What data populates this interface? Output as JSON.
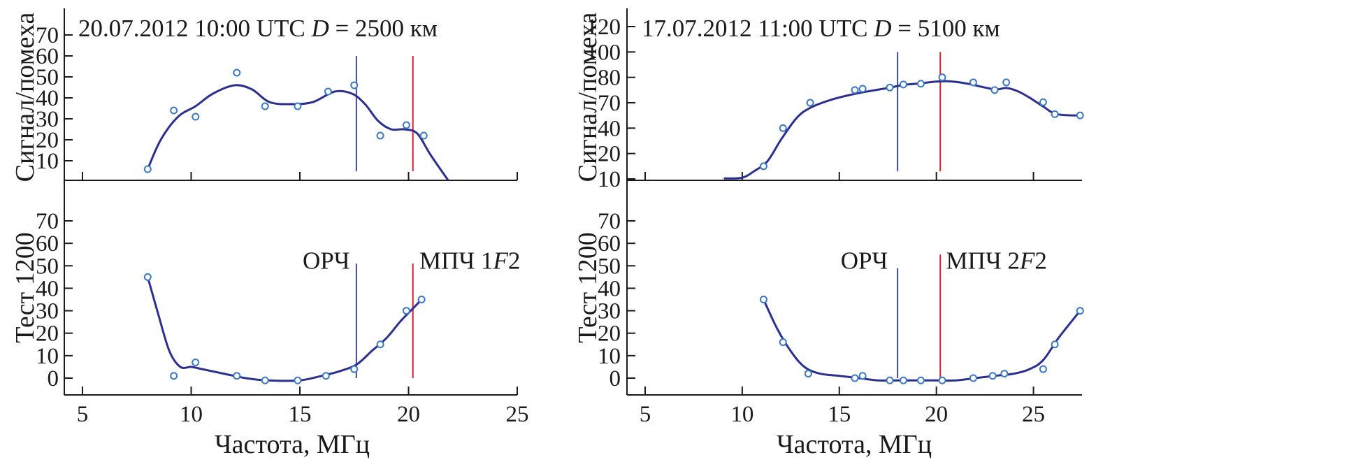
{
  "colors": {
    "curve": "#2b2f8f",
    "points": "#3a78c8",
    "opf_line": "#3a4aa8",
    "muf_line": "#d8202a",
    "axis": "#1a1a1a"
  },
  "xlabel": "Частота, МГц",
  "chart_data": [
    {
      "id": "top-left",
      "type": "line",
      "ylabel": "Сигнал/помеха",
      "annotation": {
        "date": "20.07.2012 10:00 UTC ",
        "dvar": "D",
        "drest": " = 2500 км"
      },
      "xlim": [
        5,
        25
      ],
      "xticks": [
        5,
        10,
        15,
        20,
        25
      ],
      "show_xtick_labels": false,
      "yticks": [
        10,
        20,
        30,
        40,
        50,
        60,
        70
      ],
      "ytick_labels": [
        "10",
        "20",
        "30",
        "40",
        "50",
        "60",
        "70"
      ],
      "ylim": [
        0,
        75
      ],
      "series": [
        {
          "kind": "curve",
          "x": [
            8.0,
            8.6,
            9.4,
            10.2,
            11.0,
            12.0,
            12.8,
            13.6,
            14.6,
            15.6,
            16.6,
            17.4,
            18.0,
            18.6,
            19.2,
            19.8,
            20.4,
            21.0,
            21.8
          ],
          "y": [
            6,
            20,
            31,
            36,
            42,
            46,
            44,
            38,
            37,
            38,
            43,
            42,
            37,
            29,
            25,
            25,
            23,
            13,
            1
          ]
        },
        {
          "kind": "points",
          "x": [
            8.0,
            9.2,
            10.2,
            12.1,
            13.4,
            14.9,
            16.3,
            17.5,
            18.7,
            19.9,
            20.7
          ],
          "y": [
            6,
            34,
            31,
            52,
            36,
            36,
            43,
            46,
            22,
            27,
            22
          ]
        }
      ],
      "vlines": [
        {
          "x": 17.6,
          "role": "opf",
          "y": [
            5,
            60
          ]
        },
        {
          "x": 20.2,
          "role": "muf",
          "y": [
            5,
            60
          ]
        }
      ],
      "labels": []
    },
    {
      "id": "bottom-left",
      "type": "line",
      "ylabel": "Тест 1200",
      "xlim": [
        5,
        25
      ],
      "xticks": [
        5,
        10,
        15,
        20,
        25
      ],
      "show_xtick_labels": true,
      "yticks": [
        0,
        10,
        20,
        30,
        40,
        50,
        60,
        70
      ],
      "ytick_labels": [
        "0",
        "10",
        "20",
        "30",
        "40",
        "50",
        "60",
        "70"
      ],
      "ylim": [
        -2,
        72
      ],
      "series": [
        {
          "kind": "curve",
          "x": [
            8.0,
            8.5,
            9.0,
            9.5,
            10.0,
            10.5,
            11.5,
            12.5,
            13.5,
            15.0,
            16.0,
            16.8,
            17.6,
            18.3,
            19.0,
            19.6,
            20.1,
            20.6
          ],
          "y": [
            45,
            28,
            12,
            5,
            5,
            4,
            2,
            0,
            -1,
            -1,
            1,
            3,
            6,
            12,
            18,
            25,
            30,
            35
          ]
        },
        {
          "kind": "points",
          "x": [
            8.0,
            9.2,
            10.2,
            12.1,
            13.4,
            14.9,
            16.2,
            17.5,
            18.7,
            19.9,
            20.6
          ],
          "y": [
            45,
            1,
            7,
            1,
            -1,
            -1,
            1,
            4,
            15,
            30,
            35
          ]
        }
      ],
      "vlines": [
        {
          "x": 17.6,
          "role": "opf",
          "y": [
            0,
            51
          ]
        },
        {
          "x": 20.2,
          "role": "muf",
          "y": [
            0,
            51
          ]
        }
      ],
      "labels": [
        {
          "text": "ОРЧ",
          "x": 17.3,
          "y": 48,
          "anchor": "end"
        },
        {
          "text": "МПЧ 1",
          "italic": "F",
          "rest": "2",
          "x": 20.5,
          "y": 48,
          "anchor": "start"
        }
      ]
    },
    {
      "id": "top-right",
      "type": "line",
      "ylabel": "Сигнал/помеха",
      "annotation": {
        "date": "17.07.2012 11:00 UTC ",
        "dvar": "D",
        "drest": " = 5100 км"
      },
      "xlim": [
        5,
        27.5
      ],
      "xticks": [
        5,
        10,
        15,
        20,
        25
      ],
      "show_xtick_labels": false,
      "yticks": [
        10,
        20,
        40,
        70,
        80,
        100,
        120
      ],
      "ytick_labels": [
        "10",
        "20",
        "40",
        "70",
        "80",
        "100",
        "120"
      ],
      "ylim": [
        0,
        7
      ],
      "series": [
        {
          "kind": "curve",
          "x": [
            9.1,
            10.0,
            10.6,
            11.3,
            12.0,
            12.8,
            13.5,
            14.5,
            15.5,
            16.5,
            17.5,
            18.3,
            19.0,
            19.8,
            20.5,
            21.2,
            21.8,
            22.5,
            23.1,
            23.6,
            24.2,
            24.8,
            25.5,
            26.2,
            27.4
          ],
          "y": [
            0.02,
            0.05,
            0.3,
            0.7,
            1.55,
            2.4,
            2.8,
            3.1,
            3.3,
            3.45,
            3.58,
            3.7,
            3.75,
            3.82,
            3.85,
            3.8,
            3.72,
            3.6,
            3.52,
            3.58,
            3.45,
            3.2,
            2.85,
            2.55,
            2.5
          ]
        },
        {
          "kind": "points",
          "x": [
            11.1,
            12.1,
            13.5,
            15.8,
            16.2,
            17.6,
            18.3,
            19.2,
            20.3,
            21.9,
            23.0,
            23.6,
            25.5,
            26.1,
            27.4
          ],
          "y": [
            0.5,
            2.0,
            3.0,
            3.5,
            3.55,
            3.6,
            3.72,
            3.75,
            4.0,
            3.8,
            3.5,
            3.8,
            3.02,
            2.55,
            2.5
          ]
        }
      ],
      "vlines": [
        {
          "x": 18.0,
          "role": "opf",
          "y": [
            0.3,
            5.0
          ]
        },
        {
          "x": 20.2,
          "role": "muf",
          "y": [
            0.3,
            5.0
          ]
        }
      ],
      "labels": []
    },
    {
      "id": "bottom-right",
      "type": "line",
      "ylabel": "Тест 1200",
      "xlim": [
        5,
        27.5
      ],
      "xticks": [
        5,
        10,
        15,
        20,
        25
      ],
      "show_xtick_labels": true,
      "yticks": [
        0,
        10,
        20,
        30,
        40,
        50,
        60,
        70
      ],
      "ytick_labels": [
        "0",
        "10",
        "20",
        "30",
        "40",
        "50",
        "60",
        "70"
      ],
      "ylim": [
        -2,
        72
      ],
      "series": [
        {
          "kind": "curve",
          "x": [
            11.1,
            11.8,
            12.5,
            13.2,
            14.0,
            15.0,
            16.0,
            17.0,
            18.0,
            19.0,
            20.0,
            21.0,
            22.0,
            23.0,
            24.0,
            24.8,
            25.5,
            26.3,
            27.4
          ],
          "y": [
            35,
            22,
            12,
            5,
            2,
            1,
            0,
            -1,
            -1,
            -1,
            -1,
            -1,
            0,
            1,
            2,
            4,
            8,
            18,
            30
          ]
        },
        {
          "kind": "points",
          "x": [
            11.1,
            12.1,
            13.4,
            15.8,
            16.2,
            17.6,
            18.3,
            19.2,
            20.3,
            21.9,
            22.9,
            23.5,
            25.5,
            26.1,
            27.4
          ],
          "y": [
            35,
            16,
            2,
            0,
            1,
            -1,
            -1,
            -1,
            -1,
            0,
            1,
            2,
            4,
            15,
            30
          ]
        }
      ],
      "vlines": [
        {
          "x": 18.0,
          "role": "opf",
          "y": [
            0,
            49
          ]
        },
        {
          "x": 20.2,
          "role": "muf",
          "y": [
            0,
            55
          ]
        }
      ],
      "labels": [
        {
          "text": "ОРЧ",
          "x": 17.5,
          "y": 48,
          "anchor": "end"
        },
        {
          "text": "МПЧ 2",
          "italic": "F",
          "rest": "2",
          "x": 20.5,
          "y": 48,
          "anchor": "start"
        }
      ]
    }
  ]
}
